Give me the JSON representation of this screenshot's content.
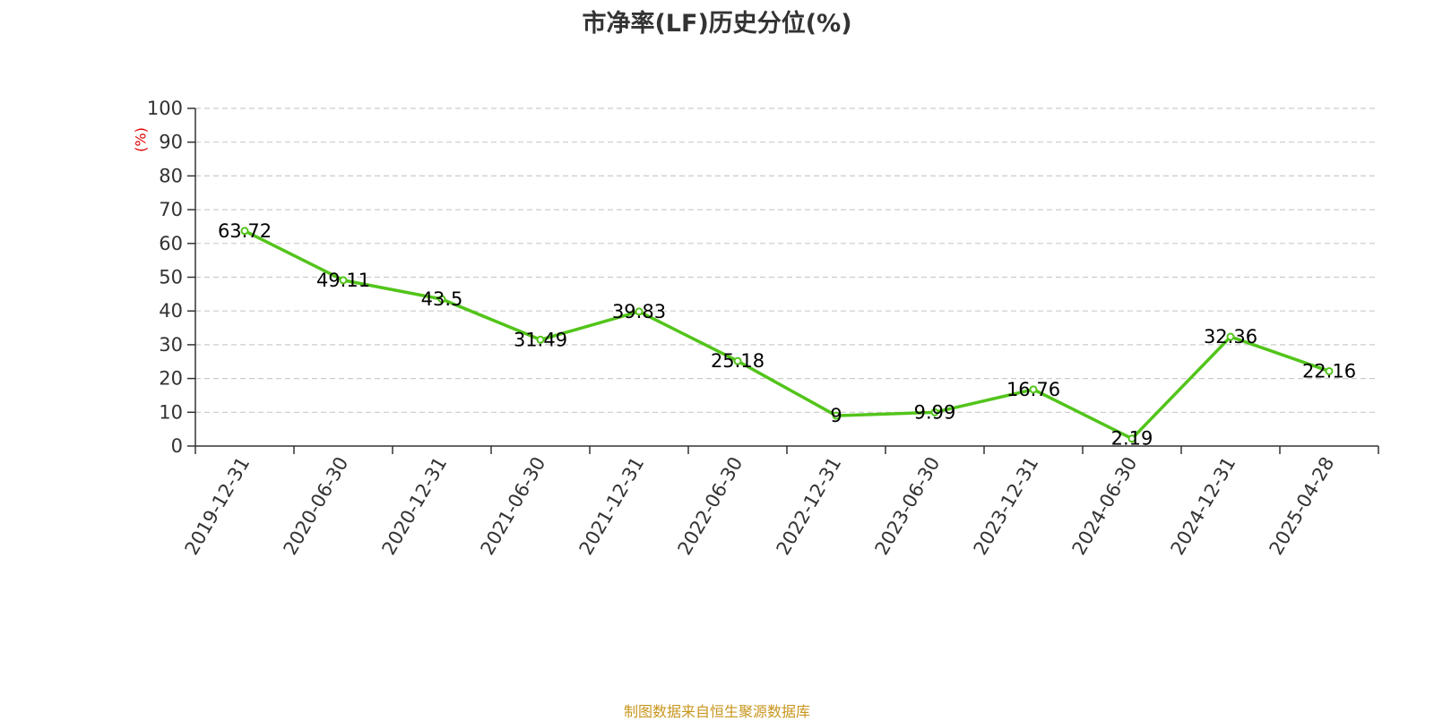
{
  "title": "市净率(LF)历史分位(%)",
  "source": "制图数据来自恒生聚源数据库",
  "chart_data": {
    "type": "line",
    "title": "市净率(LF)历史分位(%)",
    "ylabel": "(%)",
    "xlabel": "",
    "ylim": [
      0,
      100
    ],
    "yticks": [
      0,
      10,
      20,
      30,
      40,
      50,
      60,
      70,
      80,
      90,
      100
    ],
    "grid": true,
    "legend": "none",
    "categories": [
      "2019-12-31",
      "2020-06-30",
      "2020-12-31",
      "2021-06-30",
      "2021-12-31",
      "2022-06-30",
      "2022-12-31",
      "2023-06-30",
      "2023-12-31",
      "2024-06-30",
      "2024-12-31",
      "2025-04-28"
    ],
    "series": [
      {
        "values": [
          63.72,
          49.11,
          43.5,
          31.49,
          39.83,
          25.18,
          9,
          9.99,
          16.76,
          2.19,
          32.36,
          22.16
        ]
      }
    ],
    "data_labels": [
      "63.72",
      "49.11",
      "43.5",
      "31.49",
      "39.83",
      "25.18",
      "9",
      "9.99",
      "16.76",
      "2.19",
      "32.36",
      "22.16"
    ],
    "colors": {
      "line": "#52c41a",
      "ylabel": "#e00000",
      "grid": "#cccccc",
      "axis": "#333333"
    }
  }
}
